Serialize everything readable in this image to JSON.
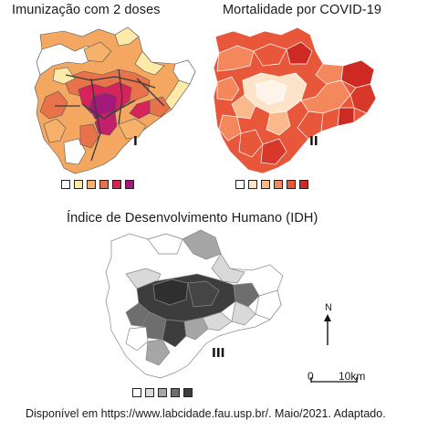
{
  "maps": [
    {
      "title": "Imunização com 2 doses",
      "label": "I",
      "legend_colors": [
        "#ffffff",
        "#fde9a8",
        "#f6b26b",
        "#e8734a",
        "#d6235a",
        "#a3197a"
      ]
    },
    {
      "title": "Mortalidade por COVID-19",
      "label": "II",
      "legend_colors": [
        "#ffffff",
        "#fde4c8",
        "#f9b98a",
        "#f4875b",
        "#e8573a",
        "#cc2a22"
      ]
    },
    {
      "title": "Índice de Desenvolvimento Humano (IDH)",
      "label": "III",
      "legend_colors": [
        "#ffffff",
        "#d9d9d9",
        "#a6a6a6",
        "#6e6e6e",
        "#3d3d3d"
      ]
    }
  ],
  "north_label": "N",
  "scale": {
    "start": "0",
    "end": "10km"
  },
  "source": "Disponível em https://www.labcidade.fau.usp.br/. Maio/2021. Adaptado."
}
